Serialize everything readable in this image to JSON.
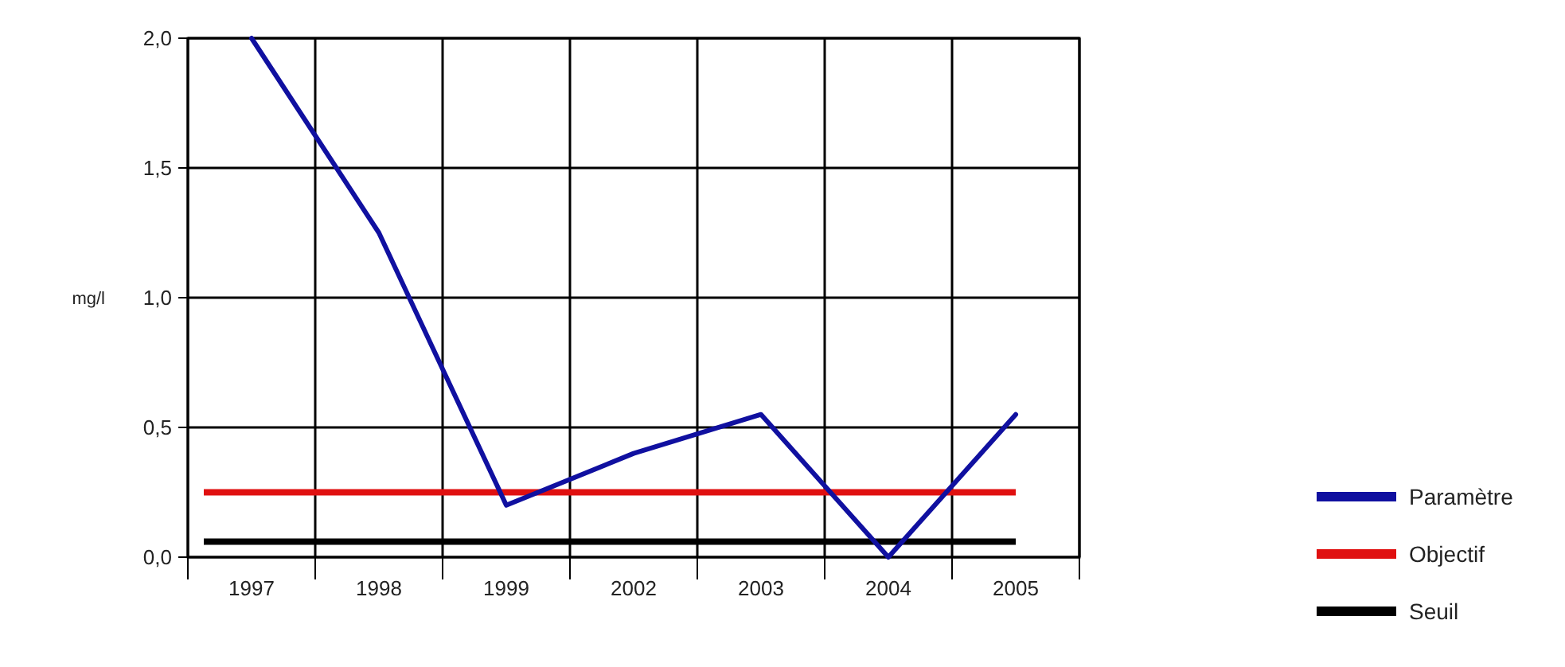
{
  "chart_data": {
    "type": "line",
    "ylabel": "mg/l",
    "categories": [
      "1997",
      "1998",
      "1999",
      "2002",
      "2003",
      "2004",
      "2005"
    ],
    "series": [
      {
        "name": "Paramètre",
        "color": "#1010a0",
        "values": [
          2.0,
          1.25,
          0.2,
          0.4,
          0.55,
          0.0,
          0.55
        ]
      }
    ],
    "ref_lines": [
      {
        "axis": "y",
        "value": 0.25,
        "label": "Objectif",
        "color": "#e01010"
      },
      {
        "axis": "y",
        "value": 0.06,
        "label": "Seuil",
        "color": "#000000"
      }
    ],
    "ylim": [
      0,
      2
    ],
    "yticks": [
      {
        "value": 0,
        "label": "0,0"
      },
      {
        "value": 0.5,
        "label": "0,5"
      },
      {
        "value": 1,
        "label": "1,0"
      },
      {
        "value": 1.5,
        "label": "1,5"
      },
      {
        "value": 2,
        "label": "2,0"
      }
    ],
    "grid": true,
    "legend": "bottom right",
    "marker": "none",
    "line_style": "solid"
  }
}
